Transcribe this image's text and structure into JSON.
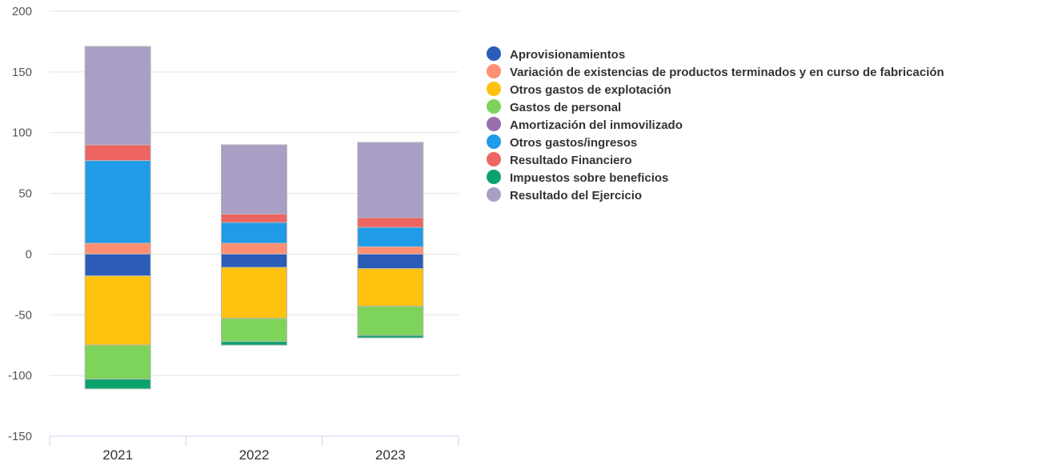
{
  "chart_data": {
    "type": "bar",
    "stacked": true,
    "categories": [
      "2021",
      "2022",
      "2023"
    ],
    "ylim": [
      -150,
      200
    ],
    "yticks": [
      200,
      150,
      100,
      50,
      0,
      -50,
      -100,
      -150
    ],
    "grid": true,
    "legend_position": "right",
    "series": [
      {
        "name": "Aprovisionamientos",
        "color": "#2a5cb8",
        "values": [
          -18,
          -11,
          -12
        ]
      },
      {
        "name": "Variación de existencias de productos terminados y en curso de fabricación",
        "color": "#ff8f73",
        "values": [
          9,
          9,
          6
        ]
      },
      {
        "name": "Otros gastos de explotación",
        "color": "#ffc20e",
        "values": [
          -57,
          -42,
          -31
        ]
      },
      {
        "name": "Gastos de personal",
        "color": "#7ed35b",
        "values": [
          -28,
          -19,
          -24
        ]
      },
      {
        "name": "Amortización del inmovilizado",
        "color": "#9b6fae",
        "values": [
          0,
          0,
          0
        ]
      },
      {
        "name": "Otros gastos/ingresos",
        "color": "#1f9be8",
        "values": [
          68,
          17,
          16
        ]
      },
      {
        "name": "Resultado Financiero",
        "color": "#ee6461",
        "values": [
          13,
          7,
          8
        ]
      },
      {
        "name": "Impuestos sobre beneficios",
        "color": "#0aa36b",
        "values": [
          -8,
          -3,
          -2
        ]
      },
      {
        "name": "Resultado del Ejercicio",
        "color": "#a99ec3",
        "values": [
          81,
          57,
          62
        ]
      }
    ]
  }
}
